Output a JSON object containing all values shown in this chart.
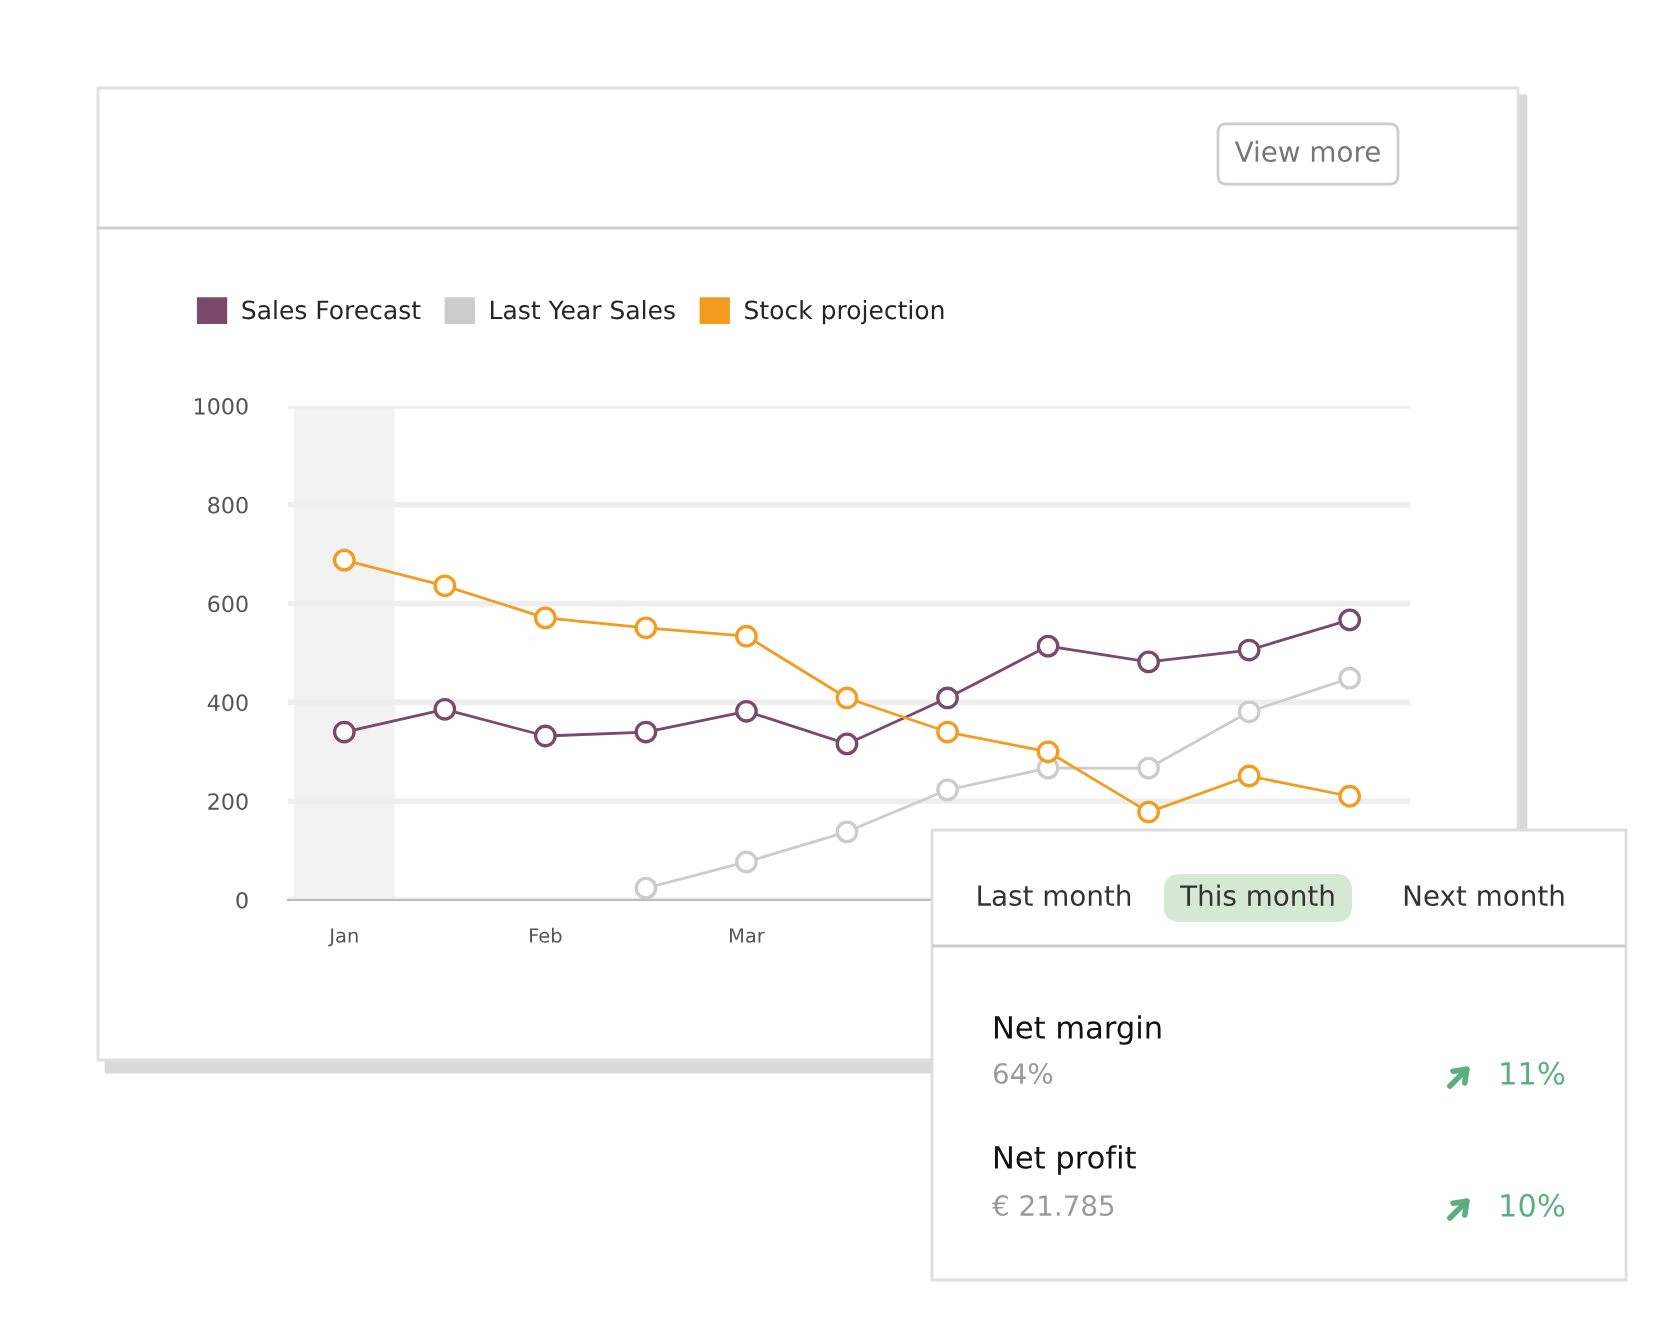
{
  "chart_data": [
    {
      "type": "line",
      "categories": [
        "Jan",
        null,
        "Feb",
        null,
        "Mar",
        null,
        null,
        null,
        null,
        null,
        null
      ],
      "ylim": [
        0,
        1000
      ],
      "yticks": [
        0,
        200,
        400,
        600,
        800,
        1000
      ],
      "grid": "y",
      "legend": "top left",
      "marker": "circle",
      "bands": [
        {
          "axis": "x",
          "from": "Jan",
          "to": "Jan",
          "color": "#f2f2f2"
        }
      ],
      "annotations": [
        "View more"
      ],
      "series": [
        {
          "name": "Sales Forecast",
          "color": "#7b4a6b",
          "values": [
            340,
            386,
            332,
            340,
            382,
            316,
            409,
            514,
            482,
            506,
            567
          ]
        },
        {
          "name": "Last Year Sales",
          "color": "#cccccc",
          "values": [
            null,
            null,
            null,
            24,
            77,
            138,
            223,
            267,
            267,
            381,
            449
          ]
        },
        {
          "name": "Stock projection",
          "color": "#f39c1f",
          "values": [
            688,
            636,
            571,
            551,
            534,
            409,
            340,
            300,
            178,
            251,
            210
          ]
        }
      ]
    },
    {
      "type": "other",
      "annotations": [
        "Last month",
        "This month",
        "Next month",
        "Net margin",
        "64%",
        "11%",
        "Net profit",
        "€ 21.785",
        "10%"
      ]
    }
  ]
}
